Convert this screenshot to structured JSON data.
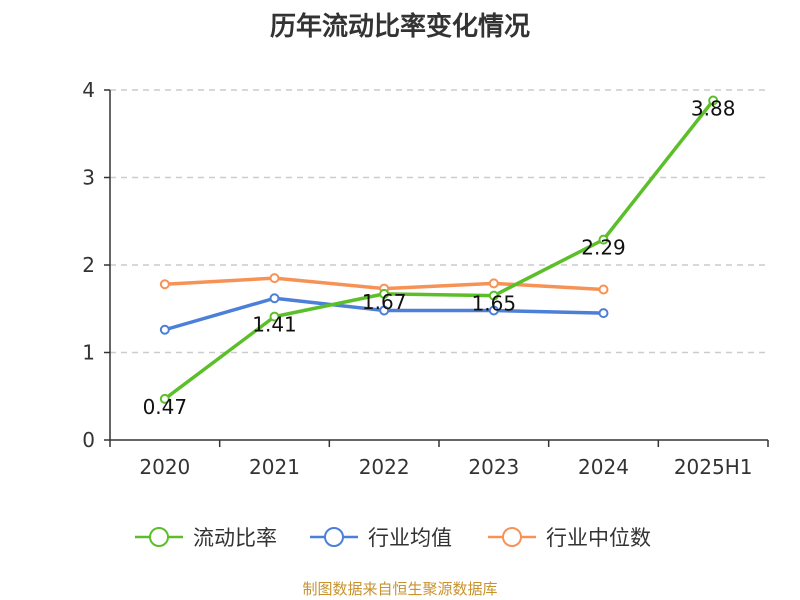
{
  "chart_data": {
    "type": "line",
    "title": "历年流动比率变化情况",
    "categories": [
      "2020",
      "2021",
      "2022",
      "2023",
      "2024",
      "2025H1"
    ],
    "ylim": [
      0,
      4
    ],
    "yticks": [
      0,
      1,
      2,
      3,
      4
    ],
    "grid": "horizontal dashed",
    "legend_position": "bottom",
    "series": [
      {
        "name": "流动比率",
        "color": "#5cbf2a",
        "values": [
          0.47,
          1.41,
          1.67,
          1.65,
          2.29,
          3.88
        ],
        "labels": [
          "0.47",
          "1.41",
          "1.67",
          "1.65",
          "2.29",
          "3.88"
        ]
      },
      {
        "name": "行业均值",
        "color": "#4c7fd8",
        "values": [
          1.26,
          1.62,
          1.48,
          1.48,
          1.45,
          null
        ]
      },
      {
        "name": "行业中位数",
        "color": "#f79256",
        "values": [
          1.78,
          1.85,
          1.73,
          1.79,
          1.72,
          null
        ]
      }
    ]
  },
  "footer": {
    "source": "制图数据来自恒生聚源数据库"
  }
}
